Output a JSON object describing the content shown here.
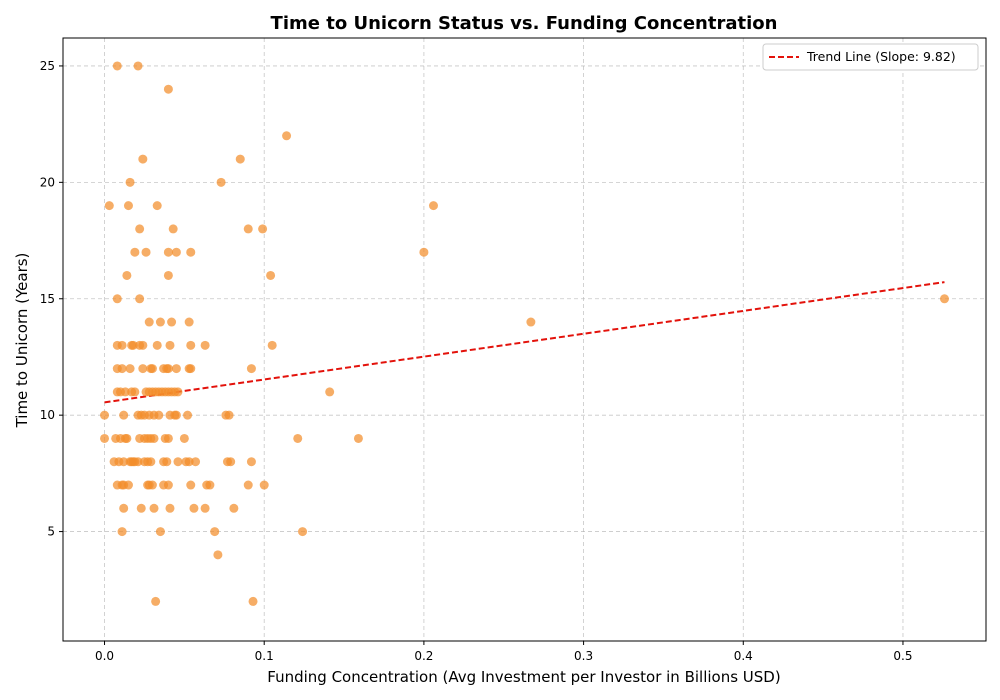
{
  "chart_data": {
    "type": "scatter",
    "title": "Time to Unicorn Status vs. Funding Concentration",
    "xlabel": "Funding Concentration (Avg Investment per Investor in Billions USD)",
    "ylabel": "Time to Unicorn (Years)",
    "xlim": [
      -0.026,
      0.552
    ],
    "ylim": [
      0.3,
      26.2
    ],
    "xticks": [
      0.0,
      0.1,
      0.2,
      0.3,
      0.4,
      0.5
    ],
    "xtick_labels": [
      "0.0",
      "0.1",
      "0.2",
      "0.3",
      "0.4",
      "0.5"
    ],
    "yticks": [
      5,
      10,
      15,
      20,
      25
    ],
    "ytick_labels": [
      "5",
      "10",
      "15",
      "20",
      "25"
    ],
    "grid": true,
    "legend_position": "top-right",
    "point_color": "#f28e2b",
    "trend_color": "#e3120b",
    "series": [
      {
        "name": "",
        "points": [
          [
            0.008,
            25
          ],
          [
            0.021,
            25
          ],
          [
            0.04,
            24
          ],
          [
            0.114,
            22
          ],
          [
            0.024,
            21
          ],
          [
            0.085,
            21
          ],
          [
            0.016,
            20
          ],
          [
            0.073,
            20
          ],
          [
            0.003,
            19
          ],
          [
            0.015,
            19
          ],
          [
            0.033,
            19
          ],
          [
            0.206,
            19
          ],
          [
            0.022,
            18
          ],
          [
            0.043,
            18
          ],
          [
            0.09,
            18
          ],
          [
            0.099,
            18
          ],
          [
            0.019,
            17
          ],
          [
            0.026,
            17
          ],
          [
            0.04,
            17
          ],
          [
            0.045,
            17
          ],
          [
            0.054,
            17
          ],
          [
            0.2,
            17
          ],
          [
            0.014,
            16
          ],
          [
            0.04,
            16
          ],
          [
            0.104,
            16
          ],
          [
            0.008,
            15
          ],
          [
            0.022,
            15
          ],
          [
            0.526,
            15
          ],
          [
            0.028,
            14
          ],
          [
            0.035,
            14
          ],
          [
            0.042,
            14
          ],
          [
            0.053,
            14
          ],
          [
            0.267,
            14
          ],
          [
            0.008,
            13
          ],
          [
            0.011,
            13
          ],
          [
            0.017,
            13
          ],
          [
            0.018,
            13
          ],
          [
            0.022,
            13
          ],
          [
            0.024,
            13
          ],
          [
            0.033,
            13
          ],
          [
            0.041,
            13
          ],
          [
            0.054,
            13
          ],
          [
            0.063,
            13
          ],
          [
            0.105,
            13
          ],
          [
            0.008,
            12
          ],
          [
            0.011,
            12
          ],
          [
            0.016,
            12
          ],
          [
            0.024,
            12
          ],
          [
            0.029,
            12
          ],
          [
            0.03,
            12
          ],
          [
            0.037,
            12
          ],
          [
            0.039,
            12
          ],
          [
            0.04,
            12
          ],
          [
            0.045,
            12
          ],
          [
            0.053,
            12
          ],
          [
            0.054,
            12
          ],
          [
            0.092,
            12
          ],
          [
            0.008,
            11
          ],
          [
            0.01,
            11
          ],
          [
            0.013,
            11
          ],
          [
            0.017,
            11
          ],
          [
            0.019,
            11
          ],
          [
            0.026,
            11
          ],
          [
            0.028,
            11
          ],
          [
            0.03,
            11
          ],
          [
            0.032,
            11
          ],
          [
            0.034,
            11
          ],
          [
            0.036,
            11
          ],
          [
            0.038,
            11
          ],
          [
            0.04,
            11
          ],
          [
            0.042,
            11
          ],
          [
            0.044,
            11
          ],
          [
            0.046,
            11
          ],
          [
            0.141,
            11
          ],
          [
            0.0,
            10
          ],
          [
            0.012,
            10
          ],
          [
            0.021,
            10
          ],
          [
            0.023,
            10
          ],
          [
            0.025,
            10
          ],
          [
            0.028,
            10
          ],
          [
            0.031,
            10
          ],
          [
            0.034,
            10
          ],
          [
            0.041,
            10
          ],
          [
            0.044,
            10
          ],
          [
            0.045,
            10
          ],
          [
            0.052,
            10
          ],
          [
            0.076,
            10
          ],
          [
            0.078,
            10
          ],
          [
            0.0,
            9
          ],
          [
            0.007,
            9
          ],
          [
            0.01,
            9
          ],
          [
            0.013,
            9
          ],
          [
            0.014,
            9
          ],
          [
            0.022,
            9
          ],
          [
            0.025,
            9
          ],
          [
            0.027,
            9
          ],
          [
            0.029,
            9
          ],
          [
            0.031,
            9
          ],
          [
            0.038,
            9
          ],
          [
            0.04,
            9
          ],
          [
            0.05,
            9
          ],
          [
            0.121,
            9
          ],
          [
            0.159,
            9
          ],
          [
            0.006,
            8
          ],
          [
            0.009,
            8
          ],
          [
            0.012,
            8
          ],
          [
            0.016,
            8
          ],
          [
            0.017,
            8
          ],
          [
            0.018,
            8
          ],
          [
            0.019,
            8
          ],
          [
            0.021,
            8
          ],
          [
            0.025,
            8
          ],
          [
            0.027,
            8
          ],
          [
            0.029,
            8
          ],
          [
            0.037,
            8
          ],
          [
            0.039,
            8
          ],
          [
            0.046,
            8
          ],
          [
            0.051,
            8
          ],
          [
            0.053,
            8
          ],
          [
            0.057,
            8
          ],
          [
            0.077,
            8
          ],
          [
            0.079,
            8
          ],
          [
            0.092,
            8
          ],
          [
            0.008,
            7
          ],
          [
            0.011,
            7
          ],
          [
            0.012,
            7
          ],
          [
            0.015,
            7
          ],
          [
            0.027,
            7
          ],
          [
            0.028,
            7
          ],
          [
            0.03,
            7
          ],
          [
            0.037,
            7
          ],
          [
            0.04,
            7
          ],
          [
            0.054,
            7
          ],
          [
            0.064,
            7
          ],
          [
            0.066,
            7
          ],
          [
            0.09,
            7
          ],
          [
            0.1,
            7
          ],
          [
            0.012,
            6
          ],
          [
            0.023,
            6
          ],
          [
            0.031,
            6
          ],
          [
            0.041,
            6
          ],
          [
            0.056,
            6
          ],
          [
            0.063,
            6
          ],
          [
            0.081,
            6
          ],
          [
            0.011,
            5
          ],
          [
            0.035,
            5
          ],
          [
            0.069,
            5
          ],
          [
            0.124,
            5
          ],
          [
            0.071,
            4
          ],
          [
            0.032,
            2
          ],
          [
            0.093,
            2
          ]
        ]
      }
    ],
    "trend_line": {
      "name": "Trend Line (Slope: 9.82)",
      "slope": 9.82,
      "intercept": 10.55,
      "x_range": [
        0.0,
        0.526
      ]
    }
  }
}
